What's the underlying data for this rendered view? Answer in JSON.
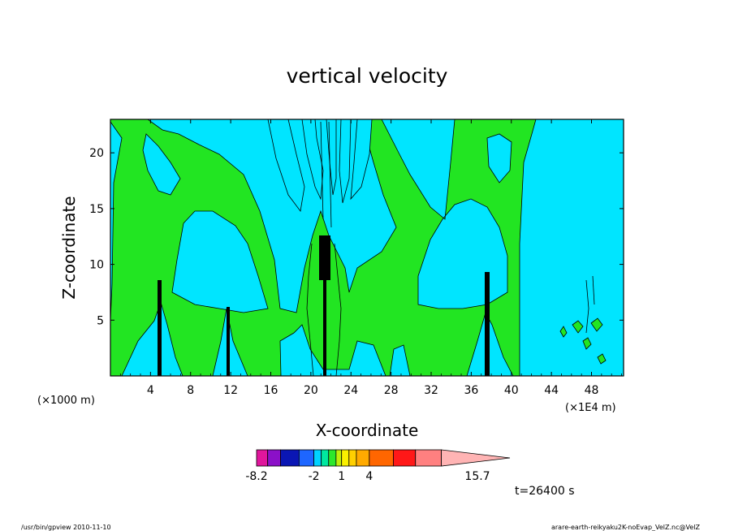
{
  "chart_data": {
    "type": "heatmap",
    "title": "vertical velocity",
    "xlabel": "X-coordinate",
    "ylabel": "Z-coordinate",
    "x_unit_left": "(×1000 m)",
    "x_unit_right": "(×1E4 m)",
    "xlim": [
      0,
      51.2
    ],
    "ylim": [
      0,
      23
    ],
    "x_ticks": [
      4,
      8,
      12,
      16,
      20,
      24,
      28,
      32,
      36,
      40,
      44,
      48
    ],
    "y_ticks": [
      5,
      10,
      15,
      20
    ],
    "grid": false,
    "field": {
      "background_color": "#00e5ff",
      "positive_color": "#22e522",
      "contour_color": "#000000",
      "upward_plumes": [
        {
          "x_center": 5,
          "z_top": 9
        },
        {
          "x_center": 11.8,
          "z_top": 6.5
        },
        {
          "x_center": 21.5,
          "z_top": 13
        },
        {
          "x_center": 37.5,
          "z_top": 9.5
        }
      ]
    },
    "colorbar": {
      "levels": [
        -8.2,
        -7,
        -5.6,
        -3.6,
        -2,
        -1.2,
        -0.4,
        0.4,
        1,
        1.8,
        2.6,
        4,
        6.6,
        9,
        11.8,
        15.7
      ],
      "colors": [
        "#e0169c",
        "#8b10c8",
        "#0a16b4",
        "#1e66ff",
        "#00d2ff",
        "#00e8a0",
        "#2ce82c",
        "#bef00a",
        "#faf000",
        "#ffd000",
        "#ffaa00",
        "#ff6600",
        "#ff1818",
        "#ff8080",
        "#ffb4b4"
      ],
      "tick_labels": [
        "-8.2",
        "-2",
        "1",
        "4",
        "15.7"
      ],
      "tick_values": [
        -8.2,
        -2,
        1,
        4,
        15.7
      ]
    }
  },
  "time_label": "t=26400 s",
  "footer": {
    "program": "/usr/bin/gpview   2010-11-10",
    "file": "arare-earth-reikyaku2K-noEvap_VelZ.nc@VelZ"
  }
}
